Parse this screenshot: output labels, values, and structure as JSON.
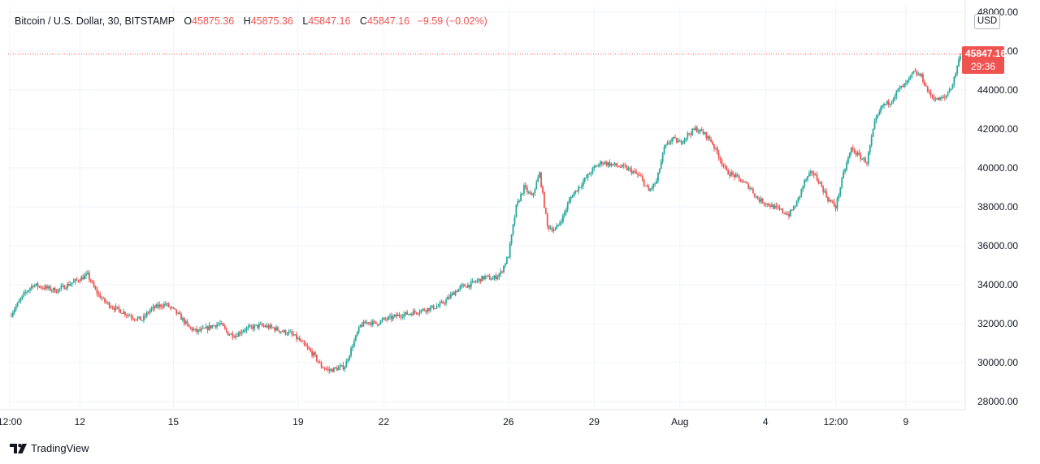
{
  "legend": {
    "symbol": "Bitcoin / U.S. Dollar, 30, BITSTAMP",
    "open_label": "O",
    "open": "45875.36",
    "high_label": "H",
    "high": "45875.36",
    "low_label": "L",
    "low": "45847.16",
    "close_label": "C",
    "close": "45847.16",
    "change": "−9.59 (−0.02%)"
  },
  "currency_badge": "USD",
  "last_price": {
    "price": "45847.16",
    "countdown": "29:36"
  },
  "brand": "TradingView",
  "colors": {
    "up": "#26a69a",
    "down": "#ef5350",
    "grid": "#f0f3fa",
    "text": "#131722"
  },
  "chart_data": {
    "type": "candlestick",
    "title": "Bitcoin / U.S. Dollar, 30, BITSTAMP",
    "interval": "30",
    "xlabel": "",
    "ylabel": "",
    "ylim": [
      27000,
      49000
    ],
    "y_ticks": [
      "28000.00",
      "30000.00",
      "32000.00",
      "34000.00",
      "36000.00",
      "38000.00",
      "40000.00",
      "42000.00",
      "44000.00",
      "46000.00",
      "48000.00"
    ],
    "x_ticks": [
      {
        "label": "12:00",
        "i": 0
      },
      {
        "label": "12",
        "i": 9
      },
      {
        "label": "15",
        "i": 21
      },
      {
        "label": "19",
        "i": 37
      },
      {
        "label": "22",
        "i": 48
      },
      {
        "label": "26",
        "i": 64
      },
      {
        "label": "29",
        "i": 75
      },
      {
        "label": "Aug",
        "i": 86
      },
      {
        "label": "4",
        "i": 97
      },
      {
        "label": "12:00",
        "i": 106
      },
      {
        "label": "9",
        "i": 115
      }
    ],
    "close_path": [
      32400,
      33000,
      33600,
      34000,
      33900,
      33800,
      33700,
      33900,
      34100,
      34300,
      34500,
      33700,
      33200,
      32900,
      32700,
      32500,
      32300,
      32200,
      32700,
      32900,
      33000,
      32700,
      32300,
      31800,
      31600,
      31700,
      31900,
      32000,
      31500,
      31400,
      31700,
      31800,
      31900,
      31850,
      31750,
      31600,
      31500,
      31200,
      30800,
      30400,
      29800,
      29600,
      29700,
      29800,
      30900,
      31900,
      32100,
      32000,
      32200,
      32300,
      32450,
      32500,
      32600,
      32700,
      32800,
      32900,
      33200,
      33600,
      33900,
      34000,
      34200,
      34400,
      34300,
      34600,
      35500,
      38000,
      39000,
      38500,
      39700,
      37000,
      36800,
      37500,
      38500,
      39000,
      39500,
      40000,
      40300,
      40200,
      40100,
      40000,
      39800,
      39500,
      38800,
      39300,
      41000,
      41500,
      41300,
      41700,
      42000,
      41800,
      41400,
      40600,
      39800,
      39600,
      39300,
      39000,
      38400,
      38200,
      38000,
      37800,
      37600,
      38200,
      39300,
      39800,
      39200,
      38400,
      38000,
      39700,
      41000,
      40600,
      40300,
      42300,
      43200,
      43400,
      44000,
      44300,
      44900,
      44700,
      43800,
      43500,
      43600,
      44300,
      45847.16
    ],
    "last": {
      "open": 45875.36,
      "high": 45875.36,
      "low": 45847.16,
      "close": 45847.16,
      "change": -9.59,
      "change_pct": -0.02
    }
  }
}
